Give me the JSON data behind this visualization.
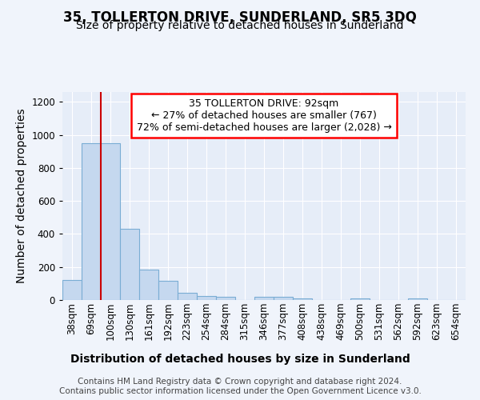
{
  "title": "35, TOLLERTON DRIVE, SUNDERLAND, SR5 3DQ",
  "subtitle": "Size of property relative to detached houses in Sunderland",
  "xlabel": "Distribution of detached houses by size in Sunderland",
  "ylabel": "Number of detached properties",
  "categories": [
    "38sqm",
    "69sqm",
    "100sqm",
    "130sqm",
    "161sqm",
    "192sqm",
    "223sqm",
    "254sqm",
    "284sqm",
    "315sqm",
    "346sqm",
    "377sqm",
    "408sqm",
    "438sqm",
    "469sqm",
    "500sqm",
    "531sqm",
    "562sqm",
    "592sqm",
    "623sqm",
    "654sqm"
  ],
  "values": [
    120,
    950,
    948,
    430,
    185,
    115,
    46,
    22,
    20,
    0,
    18,
    18,
    10,
    0,
    0,
    10,
    0,
    0,
    10,
    0,
    0
  ],
  "bar_color": "#c5d8ef",
  "bar_edge_color": "#7aadd4",
  "ylim": [
    0,
    1260
  ],
  "yticks": [
    0,
    200,
    400,
    600,
    800,
    1000,
    1200
  ],
  "vline_x_index": 2,
  "vline_color": "#cc0000",
  "annotation_text": "35 TOLLERTON DRIVE: 92sqm\n← 27% of detached houses are smaller (767)\n72% of semi-detached houses are larger (2,028) →",
  "footer_line1": "Contains HM Land Registry data © Crown copyright and database right 2024.",
  "footer_line2": "Contains public sector information licensed under the Open Government Licence v3.0.",
  "background_color": "#f0f4fb",
  "plot_bg_color": "#e6edf8",
  "title_fontsize": 12,
  "subtitle_fontsize": 10,
  "axis_label_fontsize": 10,
  "tick_fontsize": 8.5,
  "annotation_fontsize": 9,
  "footer_fontsize": 7.5
}
